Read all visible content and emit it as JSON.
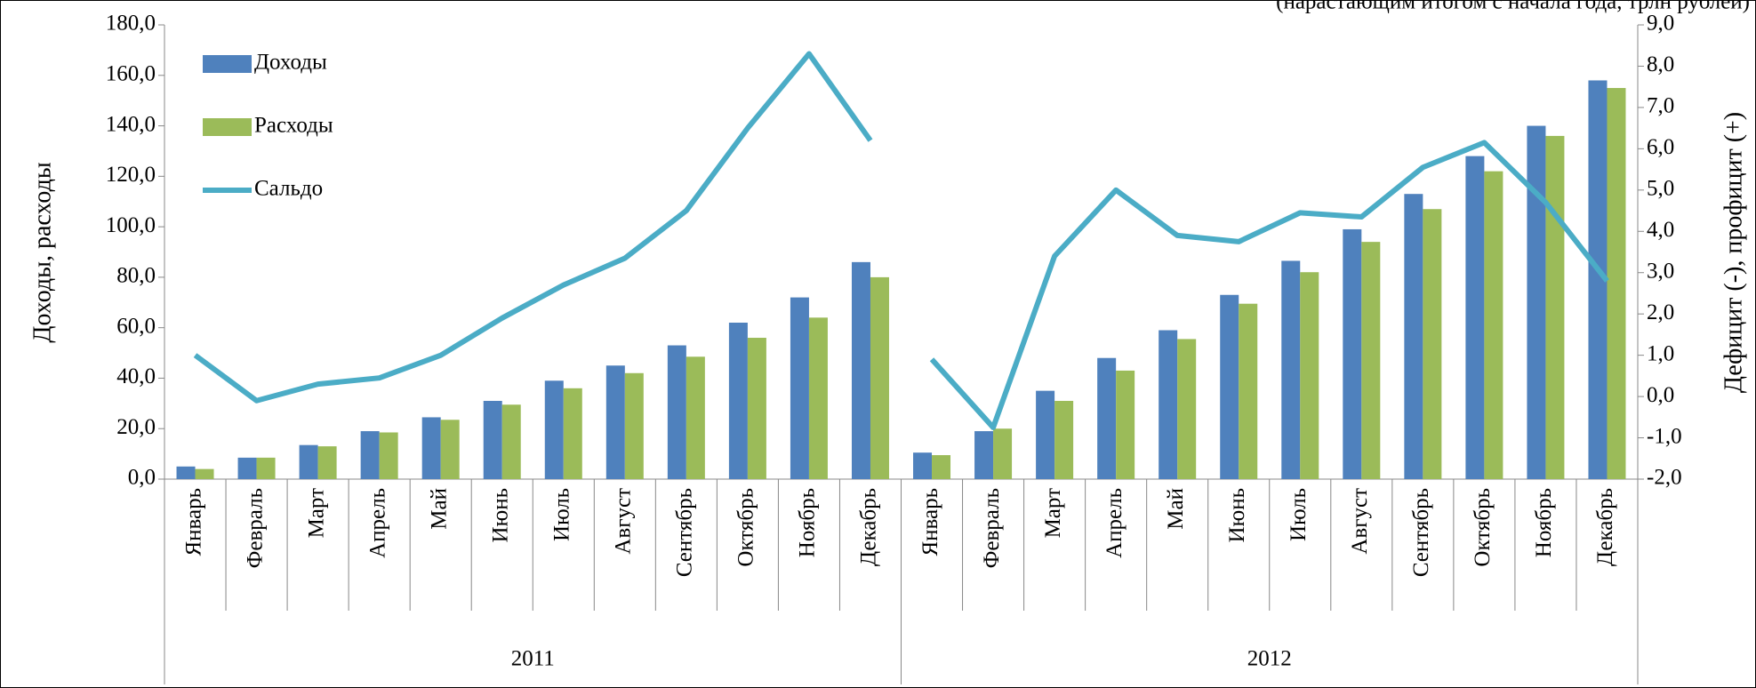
{
  "chart_data": {
    "type": "bar",
    "subtitle": "(нарастающим итогом с начала года, трлн рублей)",
    "y_label": "Доходы, расходы",
    "y2_label": "Дефицит (-), профицит (+)",
    "categories": [
      "Январь",
      "Февраль",
      "Март",
      "Апрель",
      "Май",
      "Июнь",
      "Июль",
      "Август",
      "Сентябрь",
      "Октябрь",
      "Ноябрь",
      "Декабрь",
      "Январь",
      "Февраль",
      "Март",
      "Апрель",
      "Май",
      "Июнь",
      "Июль",
      "Август",
      "Сентябрь",
      "Октябрь",
      "Ноябрь",
      "Декабрь"
    ],
    "groups": [
      "2011",
      "2012"
    ],
    "series": [
      {
        "name": "Доходы",
        "type": "bar",
        "color": "#4f81bd",
        "values": [
          5,
          8.5,
          13.5,
          19,
          24.5,
          31,
          39,
          45,
          53,
          62,
          72,
          86,
          10.5,
          19,
          35,
          48,
          59,
          73,
          86.5,
          99,
          113,
          128,
          140,
          158
        ]
      },
      {
        "name": "Расходы",
        "type": "bar",
        "color": "#9bbb59",
        "values": [
          4,
          8.5,
          13,
          18.5,
          23.5,
          29.5,
          36,
          42,
          48.5,
          56,
          64,
          80,
          9.5,
          20,
          31,
          43,
          55.5,
          69.5,
          82,
          94,
          107,
          122,
          136,
          155
        ]
      },
      {
        "name": "Сальдо",
        "type": "line",
        "axis": "y2",
        "color": "#4bacc6",
        "values": [
          1.0,
          -0.1,
          0.3,
          0.45,
          1.0,
          1.9,
          2.7,
          3.35,
          4.5,
          6.5,
          8.3,
          6.2,
          0.9,
          -0.75,
          3.4,
          5.0,
          3.9,
          3.75,
          4.45,
          4.35,
          5.55,
          6.15,
          4.7,
          2.8
        ]
      }
    ],
    "ylim": [
      0,
      180
    ],
    "yticks": [
      {
        "value": 0,
        "label": "0,0"
      },
      {
        "value": 20,
        "label": "20,0"
      },
      {
        "value": 40,
        "label": "40,0"
      },
      {
        "value": 60,
        "label": "60,0"
      },
      {
        "value": 80,
        "label": "80,0"
      },
      {
        "value": 100,
        "label": "100,0"
      },
      {
        "value": 120,
        "label": "120,0"
      },
      {
        "value": 140,
        "label": "140,0"
      },
      {
        "value": 160,
        "label": "160,0"
      },
      {
        "value": 180,
        "label": "180,0"
      }
    ],
    "y2lim": [
      -2,
      9
    ],
    "y2ticks": [
      {
        "value": -2,
        "label": "-2,0"
      },
      {
        "value": -1,
        "label": "-1,0"
      },
      {
        "value": 0,
        "label": "0,0"
      },
      {
        "value": 1,
        "label": "1,0"
      },
      {
        "value": 2,
        "label": "2,0"
      },
      {
        "value": 3,
        "label": "3,0"
      },
      {
        "value": 4,
        "label": "4,0"
      },
      {
        "value": 5,
        "label": "5,0"
      },
      {
        "value": 6,
        "label": "6,0"
      },
      {
        "value": 7,
        "label": "7,0"
      },
      {
        "value": 8,
        "label": "8,0"
      },
      {
        "value": 9,
        "label": "9,0"
      }
    ],
    "legend": "upper left"
  }
}
